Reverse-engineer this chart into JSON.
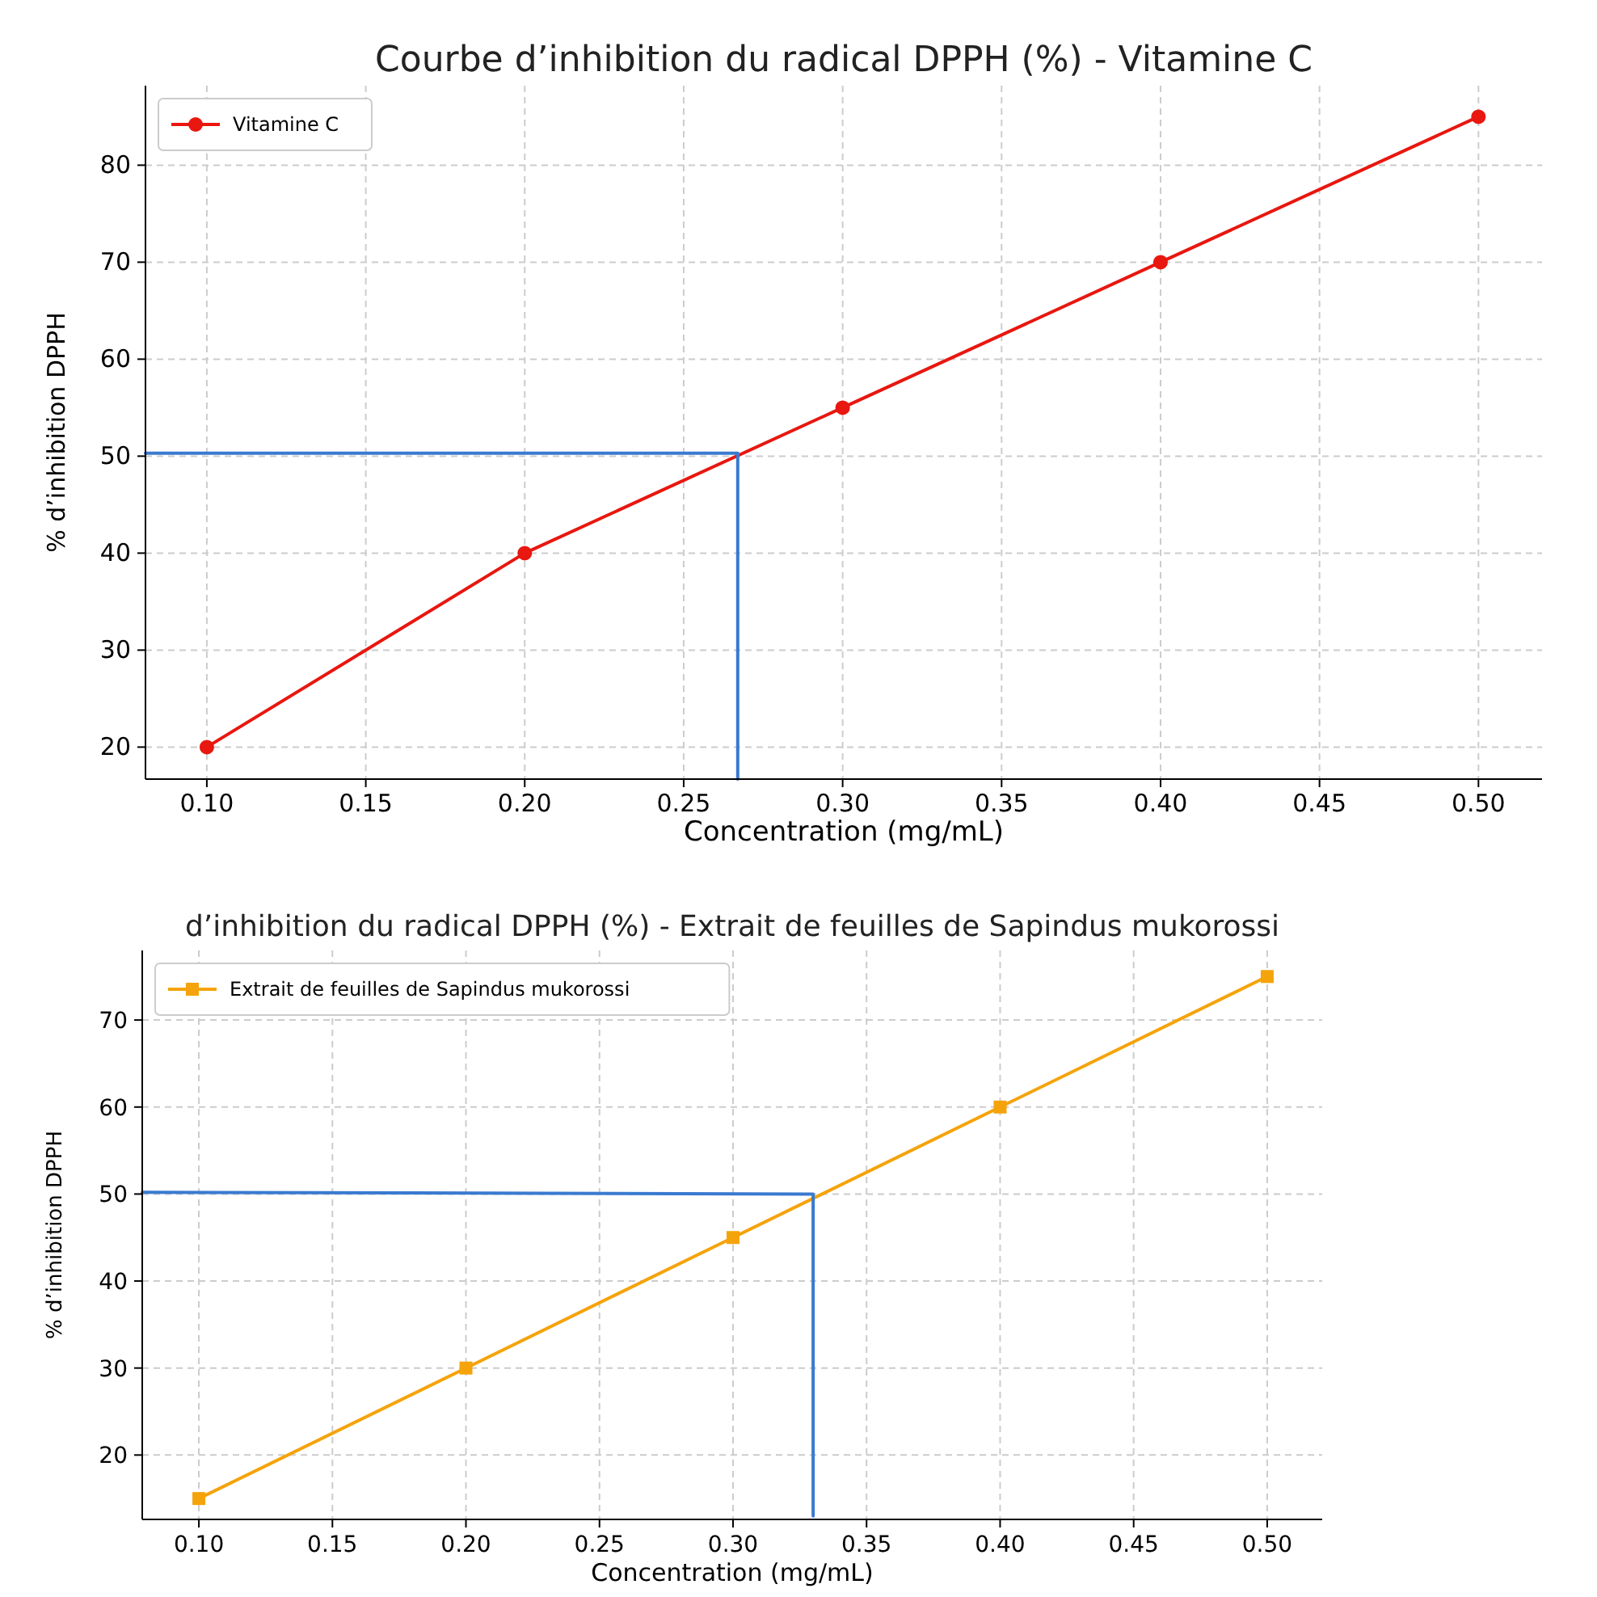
{
  "chart_data": [
    {
      "type": "line",
      "title": "Courbe d’inhibition du radical DPPH (%) - Vitamine C",
      "xlabel": "Concentration (mg/mL)",
      "ylabel": "% d’inhibition DPPH",
      "x": [
        0.1,
        0.2,
        0.3,
        0.4,
        0.5
      ],
      "xlim": [
        0.0807,
        0.52
      ],
      "ylim": [
        16.7,
        88.2
      ],
      "xticks": [
        {
          "value": 0.1,
          "label": "0.10"
        },
        {
          "value": 0.15,
          "label": "0.15"
        },
        {
          "value": 0.2,
          "label": "0.20"
        },
        {
          "value": 0.25,
          "label": "0.25"
        },
        {
          "value": 0.3,
          "label": "0.30"
        },
        {
          "value": 0.35,
          "label": "0.35"
        },
        {
          "value": 0.4,
          "label": "0.40"
        },
        {
          "value": 0.45,
          "label": "0.45"
        },
        {
          "value": 0.5,
          "label": "0.50"
        }
      ],
      "yticks": [
        20,
        30,
        40,
        50,
        60,
        70,
        80
      ],
      "grid": true,
      "legend": "top left",
      "series": [
        {
          "name": "Vitamine C",
          "color": "#e8170f",
          "marker": "circle",
          "values": [
            20,
            40,
            55,
            70,
            85
          ]
        },
        {
          "type": "line",
          "color": "#3a7ad0",
          "marker": "none",
          "x": [
            0.0807,
            0.267,
            0.267
          ],
          "values": [
            50.3,
            50.3,
            16.7
          ]
        }
      ]
    },
    {
      "type": "line",
      "title": "d’inhibition du radical DPPH (%) - Extrait de feuilles de Sapindus mukorossi",
      "xlabel": "Concentration (mg/mL)",
      "ylabel": "% d’inhibition DPPH",
      "x": [
        0.1,
        0.2,
        0.3,
        0.4,
        0.5
      ],
      "xlim": [
        0.0788,
        0.5206
      ],
      "ylim": [
        12.6,
        78
      ],
      "xticks": [
        {
          "value": 0.1,
          "label": "0.10"
        },
        {
          "value": 0.15,
          "label": "0.15"
        },
        {
          "value": 0.2,
          "label": "0.20"
        },
        {
          "value": 0.25,
          "label": "0.25"
        },
        {
          "value": 0.3,
          "label": "0.30"
        },
        {
          "value": 0.35,
          "label": "0.35"
        },
        {
          "value": 0.4,
          "label": "0.40"
        },
        {
          "value": 0.45,
          "label": "0.45"
        },
        {
          "value": 0.5,
          "label": "0.50"
        }
      ],
      "yticks": [
        20,
        30,
        40,
        50,
        60,
        70
      ],
      "grid": true,
      "legend": "top left",
      "series": [
        {
          "name": "Extrait de feuilles de Sapindus mukorossi",
          "color": "#f5a30a",
          "marker": "square",
          "values": [
            15,
            30,
            45,
            60,
            75
          ]
        },
        {
          "type": "line",
          "color": "#3a7ad0",
          "marker": "none",
          "x": [
            0.0788,
            0.33,
            0.33
          ],
          "values": [
            50.2,
            50,
            13
          ]
        }
      ]
    }
  ]
}
